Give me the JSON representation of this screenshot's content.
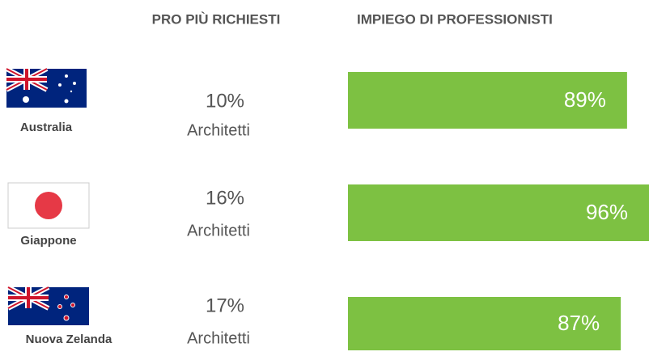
{
  "headers": [
    "PRO PIÙ RICHIESTI",
    "IMPIEGO DI PROFESSIONISTI"
  ],
  "rows": [
    {
      "country": "Australia",
      "top_pro_share": "10%",
      "top_pro": "Architetti",
      "employment": 89,
      "employment_label": "89%"
    },
    {
      "country": "Giappone",
      "top_pro_share": "16%",
      "top_pro": "Architetti",
      "employment": 96,
      "employment_label": "96%"
    },
    {
      "country": "Nuova Zelanda",
      "top_pro_share": "17%",
      "top_pro": "Architetti",
      "employment": 87,
      "employment_label": "87%"
    }
  ],
  "bar_color": "#7dc142"
}
